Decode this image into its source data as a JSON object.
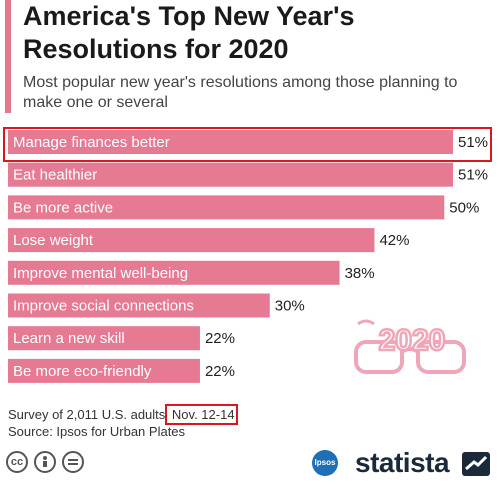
{
  "title": "America's Top New Year's Resolutions for 2020",
  "subtitle": "Most popular new year's resolutions among those planning to make one or several",
  "chart_data": {
    "type": "bar",
    "orientation": "horizontal",
    "categories": [
      "Manage finances better",
      "Eat healthier",
      "Be more active",
      "Lose weight",
      "Improve mental well-being",
      "Improve social connections",
      "Learn a new skill",
      "Be more eco-friendly"
    ],
    "values": [
      51,
      51,
      50,
      42,
      38,
      30,
      22,
      22
    ],
    "value_labels": [
      "51%",
      "51%",
      "50%",
      "42%",
      "38%",
      "30%",
      "22%",
      "22%"
    ],
    "xlim": [
      0,
      51
    ],
    "bar_color": "#e57a92",
    "highlight_color": "#d8171f",
    "highlighted_category": "Manage finances better"
  },
  "decoration": {
    "glasses_text": "2020"
  },
  "footer": {
    "survey": "Survey of 2,011 U.S. adults",
    "survey_date": "Nov. 12-14",
    "source": "Source: Ipsos for Urban Plates",
    "ipsos_logo": "Ipsos",
    "brand": "statista",
    "license_icons": [
      "cc-icon",
      "by-icon",
      "nd-icon"
    ]
  }
}
